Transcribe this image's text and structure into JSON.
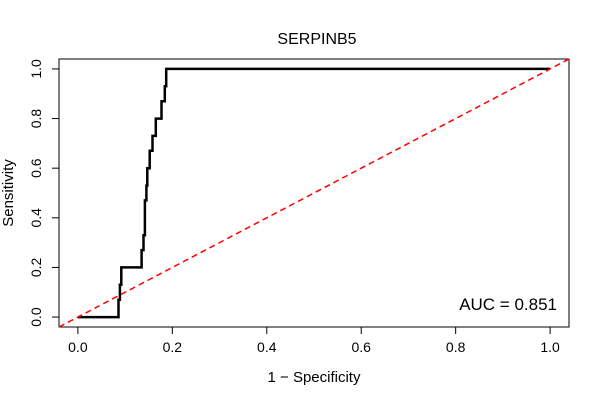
{
  "chart_data": {
    "type": "line",
    "title": "SERPINB5",
    "xlabel": "1 − Specificity",
    "ylabel": "Sensitivity",
    "xlim": [
      -0.04,
      1.04
    ],
    "ylim": [
      -0.04,
      1.04
    ],
    "xticks": [
      0.0,
      0.2,
      0.4,
      0.6,
      0.8,
      1.0
    ],
    "xtick_labels": [
      "0.0",
      "0.2",
      "0.4",
      "0.6",
      "0.8",
      "1.0"
    ],
    "yticks": [
      0.0,
      0.2,
      0.4,
      0.6,
      0.8,
      1.0
    ],
    "ytick_labels": [
      "0.0",
      "0.2",
      "0.4",
      "0.6",
      "0.8",
      "1.0"
    ],
    "grid": false,
    "annotation": "AUC = 0.851",
    "series": [
      {
        "color": "#000000",
        "style": "solid",
        "x": [
          0.0,
          0.086,
          0.086,
          0.089,
          0.089,
          0.092,
          0.092,
          0.135,
          0.135,
          0.139,
          0.139,
          0.142,
          0.142,
          0.145,
          0.145,
          0.147,
          0.147,
          0.152,
          0.152,
          0.158,
          0.158,
          0.165,
          0.165,
          0.177,
          0.177,
          0.184,
          0.184,
          0.187,
          0.187,
          0.192,
          0.192,
          1.0
        ],
        "y": [
          0.0,
          0.0,
          0.07,
          0.07,
          0.13,
          0.13,
          0.2,
          0.2,
          0.27,
          0.27,
          0.33,
          0.33,
          0.47,
          0.47,
          0.53,
          0.53,
          0.6,
          0.6,
          0.67,
          0.67,
          0.73,
          0.73,
          0.8,
          0.8,
          0.87,
          0.87,
          0.93,
          0.93,
          1.0,
          1.0,
          1.0,
          1.0
        ]
      },
      {
        "color": "#ff0000",
        "style": "dashed",
        "x": [
          -0.04,
          1.04
        ],
        "y": [
          -0.04,
          1.04
        ]
      }
    ]
  }
}
